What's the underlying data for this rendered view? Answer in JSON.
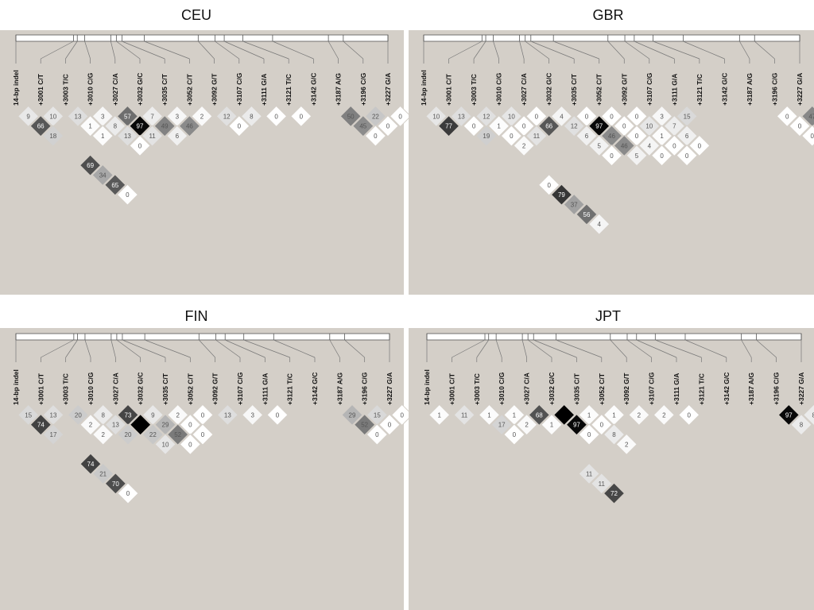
{
  "snps": [
    "14-bp indel",
    "+3001 C/T",
    "+3003 T/C",
    "+3010 C/G",
    "+3027 C/A",
    "+3032 G/C",
    "+3035 C/T",
    "+3052 C/T",
    "+3092 G/T",
    "+3107 C/G",
    "+3111 G/A",
    "+3121 T/C",
    "+3142 G/C",
    "+3187 A/G",
    "+3196 C/G",
    "+3227 G/A"
  ],
  "panels": [
    {
      "title": "CEU",
      "cells": [
        [
          [
            1,
            2
          ],
          9
        ],
        [
          [
            2,
            3
          ],
          10
        ],
        [
          [
            1,
            3
          ],
          66
        ],
        [
          [
            3,
            4
          ],
          13
        ],
        [
          [
            4,
            5
          ],
          3
        ],
        [
          [
            3,
            5
          ],
          1
        ],
        [
          [
            5,
            6
          ],
          57
        ],
        [
          [
            4,
            6
          ],
          8
        ],
        [
          [
            3,
            6
          ],
          1
        ],
        [
          [
            1,
            4
          ],
          18
        ],
        [
          [
            9,
            10
          ],
          12
        ],
        [
          [
            10,
            11
          ],
          8
        ],
        [
          [
            11,
            12
          ],
          0
        ],
        [
          [
            12,
            13
          ],
          0
        ],
        [
          [
            6,
            7
          ],
          7
        ],
        [
          [
            7,
            8
          ],
          3
        ],
        [
          [
            8,
            9
          ],
          2
        ],
        [
          [
            9,
            11
          ],
          0
        ],
        [
          [
            5,
            7
          ],
          97
        ],
        [
          [
            6,
            8
          ],
          49
        ],
        [
          [
            7,
            9
          ],
          46
        ],
        [
          [
            4,
            7
          ],
          13
        ],
        [
          [
            5,
            8
          ],
          11
        ],
        [
          [
            6,
            9
          ],
          6
        ],
        [
          [
            4,
            8
          ],
          0
        ],
        [
          [
            1,
            7
          ],
          69
        ],
        [
          [
            1,
            8
          ],
          34
        ],
        [
          [
            1,
            9
          ],
          65
        ],
        [
          [
            1,
            10
          ],
          0
        ],
        [
          [
            14,
            15
          ],
          50
        ],
        [
          [
            15,
            16
          ],
          22
        ],
        [
          [
            16,
            17
          ],
          0
        ],
        [
          [
            14,
            16
          ],
          45
        ],
        [
          [
            15,
            17
          ],
          0
        ],
        [
          [
            14,
            17
          ],
          0
        ]
      ]
    },
    {
      "title": "GBR",
      "cells": [
        [
          [
            1,
            2
          ],
          10
        ],
        [
          [
            1,
            3
          ],
          77
        ],
        [
          [
            2,
            3
          ],
          13
        ],
        [
          [
            2,
            4
          ],
          0
        ],
        [
          [
            2,
            5
          ],
          19
        ],
        [
          [
            3,
            4
          ],
          12
        ],
        [
          [
            4,
            5
          ],
          10
        ],
        [
          [
            5,
            6
          ],
          0
        ],
        [
          [
            6,
            7
          ],
          0
        ],
        [
          [
            3,
            5
          ],
          1
        ],
        [
          [
            4,
            6
          ],
          0
        ],
        [
          [
            5,
            7
          ],
          66
        ],
        [
          [
            3,
            6
          ],
          0
        ],
        [
          [
            4,
            7
          ],
          11
        ],
        [
          [
            3,
            7
          ],
          2
        ],
        [
          [
            10,
            11
          ],
          3
        ],
        [
          [
            11,
            12
          ],
          15
        ],
        [
          [
            9,
            10
          ],
          0
        ],
        [
          [
            10,
            12
          ],
          7
        ],
        [
          [
            8,
            9
          ],
          0
        ],
        [
          [
            9,
            11
          ],
          10
        ],
        [
          [
            10,
            13
          ],
          6
        ],
        [
          [
            7,
            8
          ],
          0
        ],
        [
          [
            8,
            10
          ],
          0
        ],
        [
          [
            9,
            12
          ],
          1
        ],
        [
          [
            10,
            14
          ],
          0
        ],
        [
          [
            6,
            7
          ],
          4
        ],
        [
          [
            7,
            9
          ],
          97
        ],
        [
          [
            8,
            11
          ],
          0
        ],
        [
          [
            9,
            13
          ],
          0
        ],
        [
          [
            6,
            8
          ],
          12
        ],
        [
          [
            7,
            10
          ],
          46
        ],
        [
          [
            8,
            12
          ],
          4
        ],
        [
          [
            9,
            14
          ],
          0
        ],
        [
          [
            6,
            9
          ],
          6
        ],
        [
          [
            7,
            11
          ],
          46
        ],
        [
          [
            8,
            13
          ],
          0
        ],
        [
          [
            6,
            10
          ],
          5
        ],
        [
          [
            7,
            12
          ],
          5
        ],
        [
          [
            6,
            11
          ],
          0
        ],
        [
          [
            2,
            10
          ],
          0
        ],
        [
          [
            2,
            11
          ],
          79
        ],
        [
          [
            2,
            12
          ],
          37
        ],
        [
          [
            2,
            13
          ],
          56
        ],
        [
          [
            2,
            14
          ],
          4
        ],
        [
          [
            15,
            16
          ],
          0
        ],
        [
          [
            16,
            17
          ],
          47
        ],
        [
          [
            17,
            18
          ],
          21
        ],
        [
          [
            18,
            19
          ],
          2
        ],
        [
          [
            15,
            17
          ],
          0
        ],
        [
          [
            16,
            18
          ],
          45
        ],
        [
          [
            17,
            19
          ],
          3
        ],
        [
          [
            15,
            18
          ],
          0
        ],
        [
          [
            16,
            19
          ],
          5
        ],
        [
          [
            15,
            19
          ],
          0
        ]
      ]
    },
    {
      "title": "FIN",
      "cells": [
        [
          [
            1,
            2
          ],
          15
        ],
        [
          [
            1,
            3
          ],
          74
        ],
        [
          [
            2,
            3
          ],
          13
        ],
        [
          [
            3,
            4
          ],
          20
        ],
        [
          [
            4,
            5
          ],
          8
        ],
        [
          [
            3,
            5
          ],
          2
        ],
        [
          [
            5,
            6
          ],
          73
        ],
        [
          [
            4,
            6
          ],
          13
        ],
        [
          [
            3,
            6
          ],
          2
        ],
        [
          [
            1,
            4
          ],
          17
        ],
        [
          [
            9,
            10
          ],
          13
        ],
        [
          [
            10,
            11
          ],
          3
        ],
        [
          [
            11,
            12
          ],
          0
        ],
        [
          [
            6,
            7
          ],
          9
        ],
        [
          [
            7,
            8
          ],
          2
        ],
        [
          [
            8,
            9
          ],
          0
        ],
        [
          [
            5,
            7
          ],
          100
        ],
        [
          [
            6,
            8
          ],
          29
        ],
        [
          [
            7,
            9
          ],
          0
        ],
        [
          [
            4,
            7
          ],
          20
        ],
        [
          [
            5,
            8
          ],
          22
        ],
        [
          [
            6,
            9
          ],
          52
        ],
        [
          [
            7,
            10
          ],
          0
        ],
        [
          [
            5,
            9
          ],
          10
        ],
        [
          [
            6,
            10
          ],
          0
        ],
        [
          [
            1,
            7
          ],
          74
        ],
        [
          [
            1,
            8
          ],
          21
        ],
        [
          [
            1,
            9
          ],
          70
        ],
        [
          [
            1,
            10
          ],
          0
        ],
        [
          [
            14,
            15
          ],
          29
        ],
        [
          [
            15,
            16
          ],
          15
        ],
        [
          [
            16,
            17
          ],
          0
        ],
        [
          [
            14,
            16
          ],
          52
        ],
        [
          [
            15,
            17
          ],
          0
        ],
        [
          [
            14,
            17
          ],
          0
        ]
      ]
    },
    {
      "title": "JPT",
      "cells": [
        [
          [
            1,
            2
          ],
          1
        ],
        [
          [
            2,
            3
          ],
          11
        ],
        [
          [
            3,
            4
          ],
          12
        ],
        [
          [
            3,
            4
          ],
          1
        ],
        [
          [
            4,
            5
          ],
          1
        ],
        [
          [
            3,
            5
          ],
          0
        ],
        [
          [
            5,
            6
          ],
          68
        ],
        [
          [
            4,
            6
          ],
          2
        ],
        [
          [
            3,
            6
          ],
          0
        ],
        [
          [
            3,
            5
          ],
          17
        ],
        [
          [
            9,
            10
          ],
          2
        ],
        [
          [
            10,
            11
          ],
          2
        ],
        [
          [
            11,
            12
          ],
          0
        ],
        [
          [
            6,
            7
          ],
          100
        ],
        [
          [
            7,
            8
          ],
          1
        ],
        [
          [
            8,
            9
          ],
          1
        ],
        [
          [
            5,
            7
          ],
          1
        ],
        [
          [
            6,
            8
          ],
          97
        ],
        [
          [
            7,
            9
          ],
          0
        ],
        [
          [
            6,
            9
          ],
          0
        ],
        [
          [
            7,
            10
          ],
          8
        ],
        [
          [
            7,
            11
          ],
          2
        ],
        [
          [
            4,
            11
          ],
          11
        ],
        [
          [
            4,
            12
          ],
          11
        ],
        [
          [
            4,
            13
          ],
          72
        ],
        [
          [
            15,
            16
          ],
          97
        ],
        [
          [
            16,
            17
          ],
          8
        ],
        [
          [
            15,
            17
          ],
          8
        ]
      ]
    }
  ],
  "colors": {
    "panel_bg": "#d4cfc8",
    "page_bg": "#ffffff"
  }
}
